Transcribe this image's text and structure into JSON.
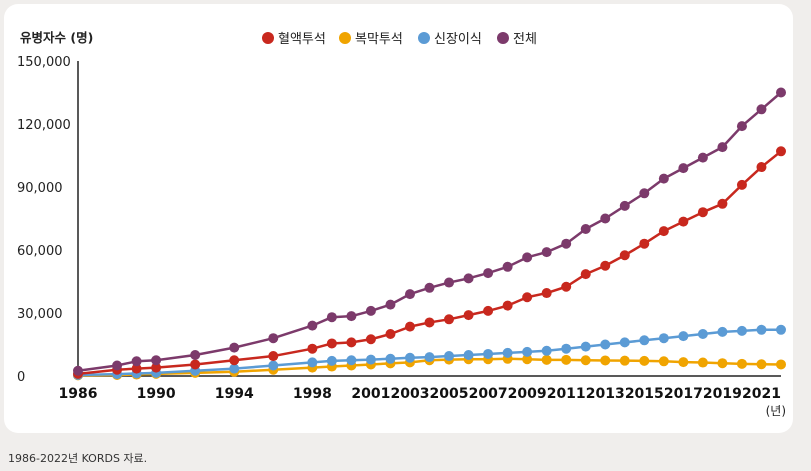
{
  "caption": "1986-2022년 KORDS 자료.",
  "chart_data": {
    "type": "line",
    "ylabel": "유병자수 (명)",
    "xunit": "(년)",
    "ylim": [
      0,
      150000
    ],
    "yticks": [
      0,
      30000,
      60000,
      90000,
      120000,
      150000
    ],
    "ytick_labels": [
      "0",
      "30,000",
      "60,000",
      "90,000",
      "120,000",
      "150,000"
    ],
    "xlim": [
      1986,
      2022
    ],
    "xticks": [
      1986,
      1990,
      1994,
      1998,
      2001,
      2003,
      2005,
      2007,
      2009,
      2011,
      2013,
      2015,
      2017,
      2019,
      2021
    ],
    "xtick_labels": [
      "1986",
      "1990",
      "1994",
      "1998",
      "2001",
      "2003",
      "2005",
      "2007",
      "2009",
      "2011",
      "2013",
      "2015",
      "2017",
      "2019",
      "2021"
    ],
    "legend_position": "top-center",
    "x": [
      1986,
      1988,
      1989,
      1990,
      1992,
      1994,
      1996,
      1998,
      1999,
      2000,
      2001,
      2002,
      2003,
      2004,
      2005,
      2006,
      2007,
      2008,
      2009,
      2010,
      2011,
      2012,
      2013,
      2014,
      2015,
      2016,
      2017,
      2018,
      2019,
      2020,
      2021,
      2022
    ],
    "series": [
      {
        "name": "혈액투석",
        "color": "#c8281e",
        "values": [
          1000,
          3000,
          3500,
          4000,
          5500,
          7500,
          9500,
          13000,
          15500,
          16000,
          17500,
          20000,
          23500,
          25500,
          27000,
          29000,
          31000,
          33500,
          37500,
          39500,
          42500,
          48500,
          52500,
          57500,
          63000,
          69000,
          73500,
          78000,
          82000,
          91000,
          99500,
          107000
        ]
      },
      {
        "name": "복막투석",
        "color": "#f0a400",
        "values": [
          300,
          500,
          700,
          1000,
          1500,
          2000,
          3000,
          4000,
          4500,
          5000,
          5500,
          6000,
          6500,
          7500,
          7800,
          8000,
          8000,
          8200,
          8000,
          7700,
          7700,
          7500,
          7400,
          7300,
          7200,
          7000,
          6600,
          6400,
          6100,
          5800,
          5600,
          5500
        ]
      },
      {
        "name": "신장이식",
        "color": "#5b9bd5",
        "values": [
          500,
          900,
          1200,
          1500,
          2500,
          3500,
          5000,
          6500,
          7200,
          7500,
          7800,
          8200,
          8700,
          9000,
          9500,
          10000,
          10500,
          11000,
          11500,
          12000,
          13000,
          14000,
          15000,
          16000,
          17000,
          18000,
          19000,
          20000,
          21000,
          21500,
          22000,
          22000
        ]
      },
      {
        "name": "전체",
        "color": "#7c3a6b",
        "values": [
          2500,
          5000,
          7000,
          7500,
          10000,
          13500,
          18000,
          24000,
          28000,
          28500,
          31000,
          34000,
          39000,
          42000,
          44500,
          46500,
          49000,
          52000,
          56500,
          59000,
          63000,
          70000,
          75000,
          81000,
          87000,
          94000,
          99000,
          104000,
          109000,
          119000,
          127000,
          135000
        ]
      }
    ]
  }
}
